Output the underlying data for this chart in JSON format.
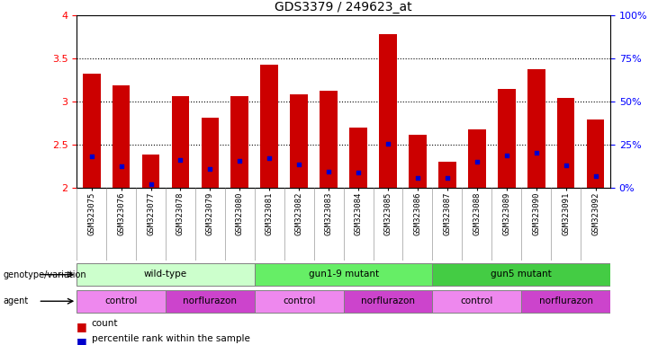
{
  "title": "GDS3379 / 249623_at",
  "samples": [
    "GSM323075",
    "GSM323076",
    "GSM323077",
    "GSM323078",
    "GSM323079",
    "GSM323080",
    "GSM323081",
    "GSM323082",
    "GSM323083",
    "GSM323084",
    "GSM323085",
    "GSM323086",
    "GSM323087",
    "GSM323088",
    "GSM323089",
    "GSM323090",
    "GSM323091",
    "GSM323092"
  ],
  "count_values": [
    3.33,
    3.19,
    2.39,
    3.07,
    2.82,
    3.07,
    3.43,
    3.09,
    3.13,
    2.7,
    3.78,
    2.62,
    2.31,
    2.68,
    3.15,
    3.38,
    3.04,
    2.79
  ],
  "percentile_values": [
    2.37,
    2.25,
    2.04,
    2.33,
    2.22,
    2.32,
    2.35,
    2.27,
    2.19,
    2.18,
    2.51,
    2.12,
    2.12,
    2.3,
    2.38,
    2.41,
    2.26,
    2.14
  ],
  "ylim_left": [
    2.0,
    4.0
  ],
  "ylim_right": [
    0,
    100
  ],
  "yticks_left": [
    2.0,
    2.5,
    3.0,
    3.5,
    4.0
  ],
  "ytick_labels_left": [
    "2",
    "2.5",
    "3",
    "3.5",
    "4"
  ],
  "yticks_right": [
    0,
    25,
    50,
    75,
    100
  ],
  "ytick_labels_right": [
    "0%",
    "25%",
    "50%",
    "75%",
    "100%"
  ],
  "bar_color": "#cc0000",
  "dot_color": "#0000cc",
  "bar_width": 0.6,
  "genotype_groups": [
    {
      "label": "wild-type",
      "start": 0,
      "end": 5,
      "color": "#ccffcc"
    },
    {
      "label": "gun1-9 mutant",
      "start": 6,
      "end": 11,
      "color": "#66ee66"
    },
    {
      "label": "gun5 mutant",
      "start": 12,
      "end": 17,
      "color": "#44cc44"
    }
  ],
  "agent_groups": [
    {
      "label": "control",
      "start": 0,
      "end": 2,
      "color": "#ee88ee"
    },
    {
      "label": "norflurazon",
      "start": 3,
      "end": 5,
      "color": "#cc44cc"
    },
    {
      "label": "control",
      "start": 6,
      "end": 8,
      "color": "#ee88ee"
    },
    {
      "label": "norflurazon",
      "start": 9,
      "end": 11,
      "color": "#cc44cc"
    },
    {
      "label": "control",
      "start": 12,
      "end": 14,
      "color": "#ee88ee"
    },
    {
      "label": "norflurazon",
      "start": 15,
      "end": 17,
      "color": "#cc44cc"
    }
  ],
  "label_count": "count",
  "label_percentile": "percentile rank within the sample"
}
